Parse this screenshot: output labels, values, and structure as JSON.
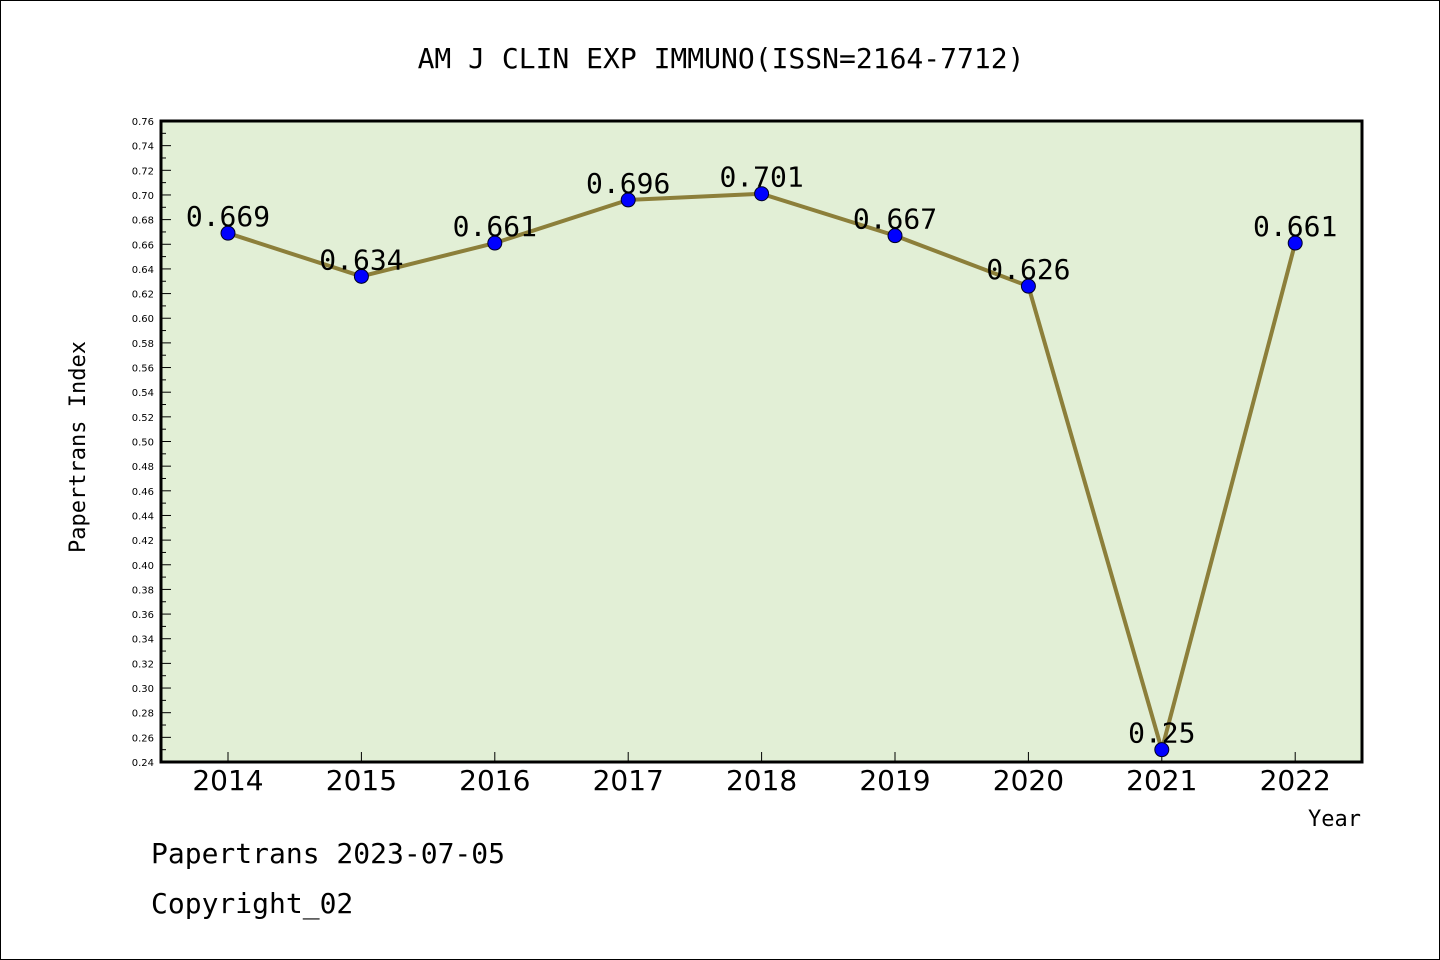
{
  "chart_data": {
    "type": "line",
    "title": "AM J CLIN EXP IMMUNO(ISSN=2164-7712)",
    "xlabel": "Year",
    "ylabel": "Papertrans Index",
    "categories": [
      "2014",
      "2015",
      "2016",
      "2017",
      "2018",
      "2019",
      "2020",
      "2021",
      "2022"
    ],
    "series": [
      {
        "values": [
          0.669,
          0.634,
          0.661,
          0.696,
          0.701,
          0.667,
          0.626,
          0.25,
          0.661
        ],
        "data_labels": [
          "0.669",
          "0.634",
          "0.661",
          "0.696",
          "0.701",
          "0.667",
          "0.626",
          "0.25",
          "0.661"
        ]
      }
    ],
    "ylim": [
      0.24,
      0.76
    ],
    "yticks": [
      "0.24",
      "0.26",
      "0.28",
      "0.30",
      "0.32",
      "0.34",
      "0.36",
      "0.38",
      "0.40",
      "0.42",
      "0.44",
      "0.46",
      "0.48",
      "0.50",
      "0.52",
      "0.54",
      "0.56",
      "0.58",
      "0.60",
      "0.62",
      "0.64",
      "0.66",
      "0.68",
      "0.70",
      "0.72",
      "0.74",
      "0.76"
    ],
    "grid": false,
    "colors": {
      "plot_background": "#e2efd6",
      "line": "#8c7f3a",
      "marker": "#0000ff"
    }
  },
  "footer": {
    "line1": "Papertrans 2023-07-05",
    "line2": "Copyright_02"
  }
}
